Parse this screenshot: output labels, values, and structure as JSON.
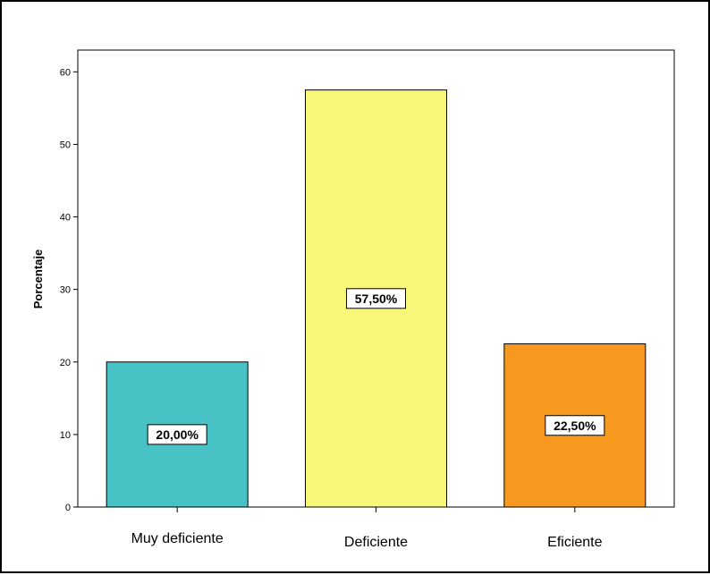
{
  "chart_data": {
    "type": "bar",
    "title": "",
    "xlabel": "",
    "ylabel": "Porcentaje",
    "ylim": [
      0,
      63
    ],
    "yticks": [
      0,
      10,
      20,
      30,
      40,
      50,
      60
    ],
    "categories": [
      "Muy deficiente",
      "Deficiente",
      "Eficiente"
    ],
    "values": [
      20.0,
      57.5,
      22.5
    ],
    "data_labels": [
      "20,00%",
      "57,50%",
      "22,50%"
    ],
    "colors": [
      "#48c2c5",
      "#f8f77a",
      "#f7991f"
    ],
    "grid": false,
    "legend": "none"
  }
}
